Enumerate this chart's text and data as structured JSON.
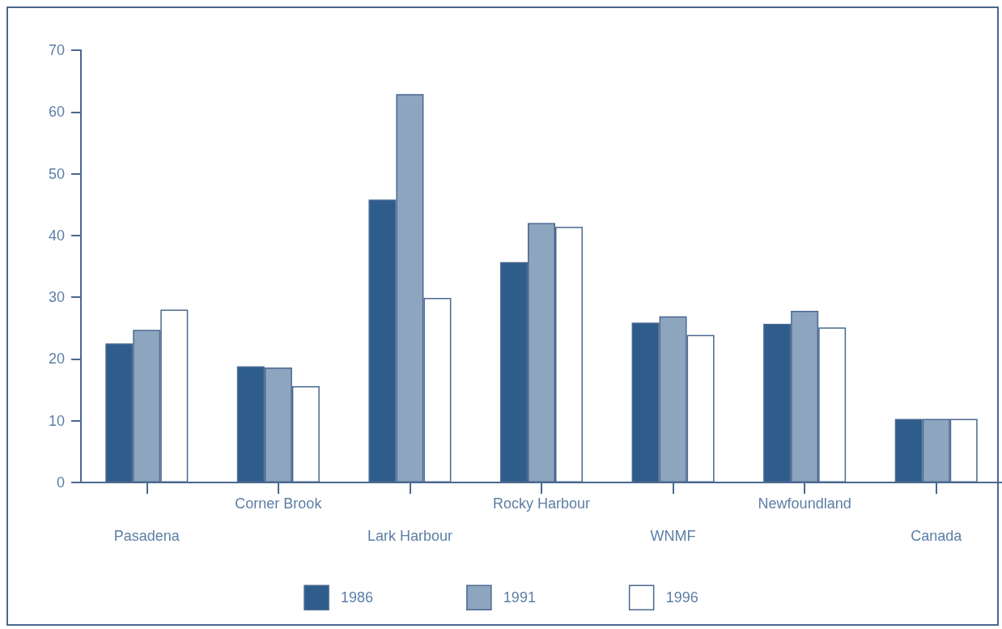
{
  "chart_data": {
    "type": "bar",
    "categories": [
      "Pasadena",
      "Corner Brook",
      "Lark Harbour",
      "Rocky Harbour",
      "WNMF",
      "Newfoundland",
      "Canada"
    ],
    "series": [
      {
        "name": "1986",
        "color": "#2e5d8c",
        "values": [
          22.5,
          18.8,
          45.8,
          35.7,
          25.9,
          25.7,
          10.3
        ]
      },
      {
        "name": "1991",
        "color": "#8ea5bf",
        "values": [
          24.7,
          18.6,
          62.9,
          42.0,
          26.9,
          27.8,
          10.3
        ]
      },
      {
        "name": "1996",
        "color": "#ffffff",
        "values": [
          28.0,
          15.6,
          29.9,
          41.4,
          23.9,
          25.1,
          10.3
        ]
      }
    ],
    "ylim": [
      0,
      70
    ],
    "yticks": [
      0,
      10,
      20,
      30,
      40,
      50,
      60,
      70
    ],
    "grid": false,
    "legend": "bottom"
  }
}
